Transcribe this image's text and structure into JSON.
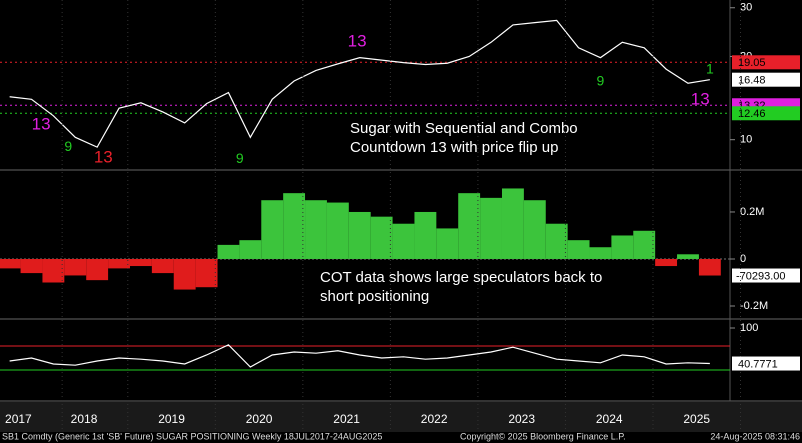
{
  "chart_data": [
    {
      "type": "line",
      "log": true,
      "color": "#ffffff",
      "annotation": [
        "Sugar with Sequential and Combo",
        "Countdown 13 with price flip up"
      ],
      "x": [
        2017.65,
        2017.9,
        2018.15,
        2018.4,
        2018.65,
        2018.9,
        2019.15,
        2019.4,
        2019.65,
        2019.9,
        2020.15,
        2020.4,
        2020.65,
        2020.9,
        2021.15,
        2021.4,
        2021.65,
        2021.9,
        2022.15,
        2022.4,
        2022.65,
        2022.9,
        2023.15,
        2023.4,
        2023.65,
        2023.9,
        2024.15,
        2024.4,
        2024.65,
        2024.9,
        2025.15,
        2025.4,
        2025.65
      ],
      "values": [
        14.3,
        14.0,
        12.2,
        10.2,
        9.4,
        13.0,
        13.6,
        12.6,
        11.5,
        13.5,
        14.8,
        10.2,
        14.0,
        16.3,
        17.8,
        18.8,
        19.8,
        19.4,
        19.0,
        18.7,
        18.9,
        20.0,
        22.5,
        26.0,
        26.5,
        27.0,
        21.5,
        19.8,
        22.5,
        21.5,
        18.0,
        16.0,
        16.48
      ],
      "xlim": [
        2017.54,
        2025.88
      ],
      "ylim": [
        7.9,
        32
      ],
      "yticks": [
        10,
        20,
        30
      ],
      "levels": [
        {
          "value": 19.05,
          "color": "#e8202a",
          "tagged": true
        },
        {
          "value": 13.32,
          "color": "#e020e0",
          "tagged": true
        },
        {
          "value": 12.46,
          "color": "#22cc22",
          "tagged": true
        }
      ],
      "markers": [
        {
          "label": "13",
          "x": 2021.62,
          "y": 22.6,
          "color": "#e020e0"
        },
        {
          "label": "13",
          "x": 2018.01,
          "y": 11.3,
          "color": "#e020e0"
        },
        {
          "label": "13",
          "x": 2018.72,
          "y": 8.6,
          "color": "#e8202a"
        },
        {
          "label": "13",
          "x": 2025.54,
          "y": 13.9,
          "color": "#e020e0"
        },
        {
          "label": "9",
          "x": 2020.28,
          "y": 8.5,
          "color": "#22cc22"
        },
        {
          "label": "9",
          "x": 2018.32,
          "y": 9.4,
          "color": "#22cc22"
        },
        {
          "label": "9",
          "x": 2024.4,
          "y": 16.2,
          "color": "#22cc22"
        },
        {
          "label": "1",
          "x": 2025.65,
          "y": 17.9,
          "color": "#22cc22"
        }
      ]
    },
    {
      "type": "bar",
      "colors": {
        "positive": "#3cc43c",
        "negative": "#e01c1c"
      },
      "annotation": [
        "COT data shows large speculators back to",
        "short positioning"
      ],
      "x": [
        2017.65,
        2017.9,
        2018.15,
        2018.4,
        2018.65,
        2018.9,
        2019.15,
        2019.4,
        2019.65,
        2019.9,
        2020.15,
        2020.4,
        2020.65,
        2020.9,
        2021.15,
        2021.4,
        2021.65,
        2021.9,
        2022.15,
        2022.4,
        2022.65,
        2022.9,
        2023.15,
        2023.4,
        2023.65,
        2023.9,
        2024.15,
        2024.4,
        2024.65,
        2024.9,
        2025.15,
        2025.4,
        2025.65
      ],
      "values": [
        -40000,
        -60000,
        -100000,
        -70000,
        -90000,
        -40000,
        -30000,
        -60000,
        -130000,
        -120000,
        60000,
        80000,
        250000,
        280000,
        250000,
        240000,
        200000,
        180000,
        150000,
        200000,
        130000,
        280000,
        260000,
        300000,
        250000,
        150000,
        80000,
        50000,
        100000,
        120000,
        -30000,
        20000,
        -70293
      ],
      "last_label": "-70293.00",
      "xlim": [
        2017.54,
        2025.88
      ],
      "ylim": [
        -251000,
        370000
      ],
      "yticks": [
        {
          "value": 200000,
          "label": "0.2M"
        },
        0,
        {
          "value": -200000,
          "label": "-0.2M"
        }
      ]
    },
    {
      "type": "line",
      "color": "#ffffff",
      "x": [
        2017.65,
        2017.9,
        2018.15,
        2018.4,
        2018.65,
        2018.9,
        2019.15,
        2019.4,
        2019.65,
        2019.9,
        2020.15,
        2020.4,
        2020.65,
        2020.9,
        2021.15,
        2021.4,
        2021.65,
        2021.9,
        2022.15,
        2022.4,
        2022.65,
        2022.9,
        2023.15,
        2023.4,
        2023.65,
        2023.9,
        2024.15,
        2024.4,
        2024.65,
        2024.9,
        2025.15,
        2025.4,
        2025.65
      ],
      "values": [
        45,
        50,
        40,
        38,
        45,
        50,
        48,
        45,
        40,
        55,
        72,
        35,
        55,
        60,
        58,
        62,
        55,
        50,
        52,
        48,
        50,
        55,
        60,
        68,
        58,
        48,
        45,
        42,
        55,
        52,
        40,
        42,
        40.7771
      ],
      "xlim": [
        2017.54,
        2025.88
      ],
      "ylim": [
        -16.7,
        110
      ],
      "yticks": [
        100
      ],
      "levels": [
        {
          "value": 70,
          "color": "#e8202a"
        },
        {
          "value": 30,
          "color": "#22cc22"
        }
      ],
      "xticks": [
        {
          "value": 2017.75,
          "label": "2017"
        },
        {
          "value": 2018.5,
          "label": "2018"
        },
        {
          "value": 2019.5,
          "label": "2019"
        },
        {
          "value": 2020.5,
          "label": "2020"
        },
        {
          "value": 2021.5,
          "label": "2021"
        },
        {
          "value": 2022.5,
          "label": "2022"
        },
        {
          "value": 2023.5,
          "label": "2023"
        },
        {
          "value": 2024.5,
          "label": "2024"
        },
        {
          "value": 2025.5,
          "label": "2025"
        }
      ]
    }
  ],
  "footer": {
    "left": "SB1 Comdty (Generic 1st 'SB' Future) SUGAR POSITIONING  Weekly 18JUL2017-24AUG2025",
    "center": "Copyright© 2025 Bloomberg Finance L.P.",
    "right": "24-Aug-2025 08:31:46"
  }
}
